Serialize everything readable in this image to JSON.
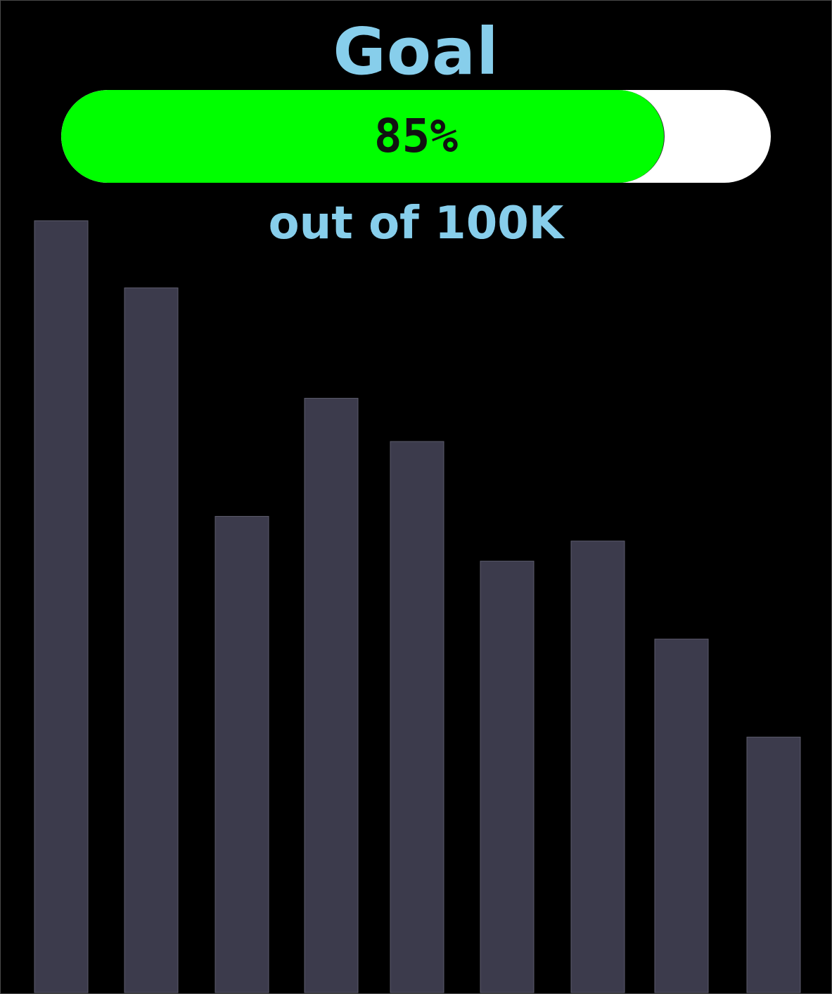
{
  "header": {
    "title": "Goal",
    "subtitle": "out of 100K"
  },
  "progress": {
    "value": 0.85,
    "label": "85%",
    "fill_color": "#00ff00",
    "track_color": "#ffffff"
  },
  "colors": {
    "background": "#000000",
    "text_accent": "#87ceeb",
    "bar": "#3c3b4c",
    "bar_border": "#5c5b6c"
  },
  "chart_data": {
    "type": "bar",
    "values": [
      1.0,
      0.913,
      0.617,
      0.77,
      0.714,
      0.559,
      0.585,
      0.458,
      0.331
    ],
    "ylim": [
      0,
      1
    ],
    "grid": false
  }
}
